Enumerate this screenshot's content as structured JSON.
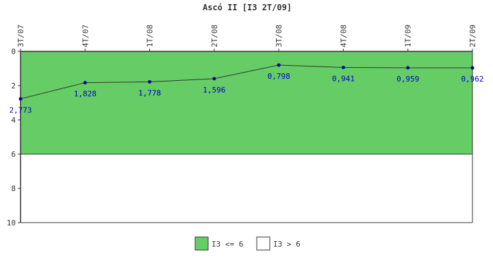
{
  "chart_data": {
    "type": "line",
    "title": "Ascó II [I3 2T/09]",
    "categories": [
      "3T/07",
      "4T/07",
      "1T/08",
      "2T/08",
      "3T/08",
      "4T/08",
      "1T/09",
      "2T/09"
    ],
    "series": [
      {
        "values": [
          2.773,
          1.828,
          1.778,
          1.596,
          0.798,
          0.941,
          0.959,
          0.962
        ],
        "labels": [
          "2,773",
          "1,828",
          "1,778",
          "1,596",
          "0,798",
          "0,941",
          "0,959",
          "0,962"
        ],
        "color": "#333333",
        "marker_color": "#000099"
      }
    ],
    "y_ticks": [
      "0",
      "2",
      "4",
      "6",
      "8",
      "10"
    ],
    "ylim": [
      0,
      10
    ],
    "y_inverted": true,
    "bands": [
      {
        "from": 0,
        "to": 6,
        "color": "#66cc66",
        "label": "I3 <= 6"
      },
      {
        "from": 6,
        "to": 10,
        "color": "#ffffff",
        "label": "I3 > 6"
      }
    ],
    "legend_position": "bottom-center",
    "label_color": "#0000cc",
    "grid": false
  }
}
